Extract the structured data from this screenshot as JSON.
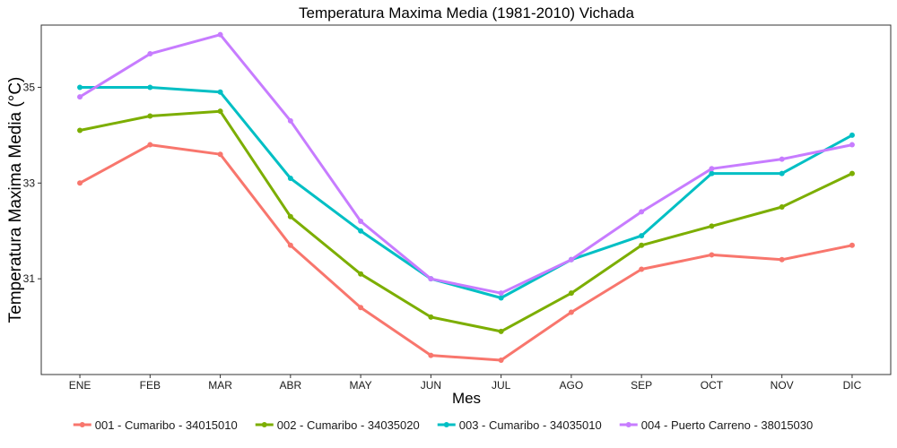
{
  "chart_data": {
    "type": "line",
    "title": "Temperatura Maxima Media (1981-2010)  Vichada",
    "xlabel": "Mes",
    "ylabel": "Temperatura Maxima Media  (°C)",
    "categories": [
      "ENE",
      "FEB",
      "MAR",
      "ABR",
      "MAY",
      "JUN",
      "JUL",
      "AGO",
      "SEP",
      "OCT",
      "NOV",
      "DIC"
    ],
    "ylim": [
      29.0,
      36.3
    ],
    "yticks": [
      31,
      33,
      35
    ],
    "grid": false,
    "legend_position": "bottom",
    "series": [
      {
        "name": "001 - Cumaribo - 34015010",
        "color": "#F8766D",
        "values": [
          33.0,
          33.8,
          33.6,
          31.7,
          30.4,
          29.4,
          29.3,
          30.3,
          31.2,
          31.5,
          31.4,
          31.7
        ]
      },
      {
        "name": "002 - Cumaribo - 34035020",
        "color": "#7CAE00",
        "values": [
          34.1,
          34.4,
          34.5,
          32.3,
          31.1,
          30.2,
          29.9,
          30.7,
          31.7,
          32.1,
          32.5,
          33.2
        ]
      },
      {
        "name": "003 - Cumaribo - 34035010",
        "color": "#00BFC4",
        "values": [
          35.0,
          35.0,
          34.9,
          33.1,
          32.0,
          31.0,
          30.6,
          31.4,
          31.9,
          33.2,
          33.2,
          34.0
        ]
      },
      {
        "name": "004 - Puerto Carreno - 38015030",
        "color": "#C77CFF",
        "values": [
          34.8,
          35.7,
          36.1,
          34.3,
          32.2,
          31.0,
          30.7,
          31.4,
          32.4,
          33.3,
          33.5,
          33.8
        ]
      }
    ]
  }
}
